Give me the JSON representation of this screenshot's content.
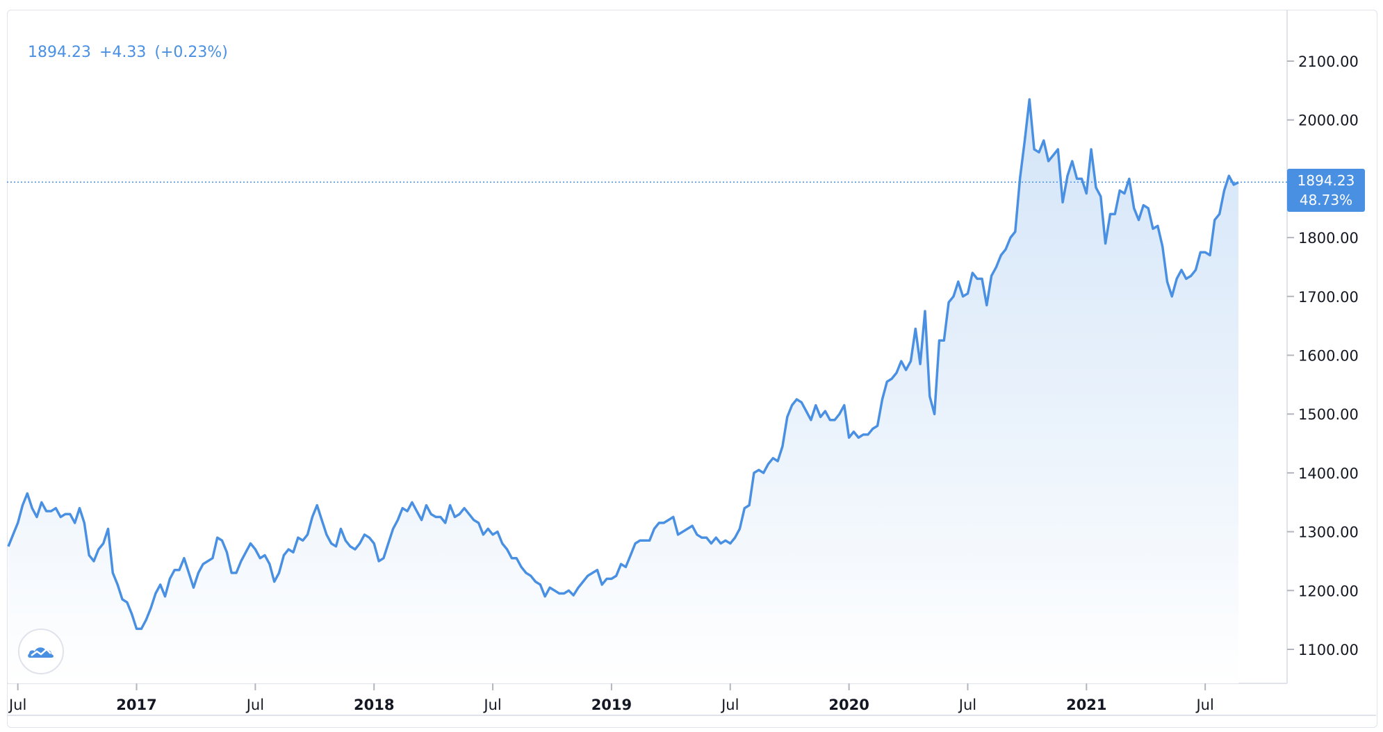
{
  "legend": {
    "last": "1894.23",
    "change": "+4.33",
    "change_pct": "(+0.23%)"
  },
  "price_tag": {
    "price": "1894.23",
    "pct": "48.73%"
  },
  "colors": {
    "line": "#4a90e2",
    "area_top": "#cfe2f7",
    "area_bottom": "#ffffff",
    "grid": "#e0e3eb",
    "text": "#131722"
  },
  "chart_data": {
    "type": "area",
    "y_ticks": [
      "1100.00",
      "1200.00",
      "1300.00",
      "1400.00",
      "1500.00",
      "1600.00",
      "1700.00",
      "1800.00",
      "2000.00",
      "2100.00"
    ],
    "y_tick_values": [
      1100,
      1200,
      1300,
      1400,
      1500,
      1600,
      1700,
      1800,
      2000,
      2100
    ],
    "ylim": [
      1000,
      2160
    ],
    "x_ticks": [
      {
        "label": "Jul",
        "year": false,
        "t": 2016.5
      },
      {
        "label": "2017",
        "year": true,
        "t": 2017.0
      },
      {
        "label": "Jul",
        "year": false,
        "t": 2017.5
      },
      {
        "label": "2018",
        "year": true,
        "t": 2018.0
      },
      {
        "label": "Jul",
        "year": false,
        "t": 2018.5
      },
      {
        "label": "2019",
        "year": true,
        "t": 2019.0
      },
      {
        "label": "Jul",
        "year": false,
        "t": 2019.5
      },
      {
        "label": "2020",
        "year": true,
        "t": 2020.0
      },
      {
        "label": "Jul",
        "year": false,
        "t": 2020.5
      },
      {
        "label": "2021",
        "year": true,
        "t": 2021.0
      },
      {
        "label": "Jul",
        "year": false,
        "t": 2021.5
      }
    ],
    "xlim": [
      2016.46,
      2021.55
    ],
    "last_value": 1894.23,
    "series": [
      {
        "points": [
          [
            2016.46,
            1275
          ],
          [
            2016.48,
            1295
          ],
          [
            2016.5,
            1315
          ],
          [
            2016.52,
            1345
          ],
          [
            2016.54,
            1365
          ],
          [
            2016.56,
            1340
          ],
          [
            2016.58,
            1325
          ],
          [
            2016.6,
            1350
          ],
          [
            2016.62,
            1335
          ],
          [
            2016.64,
            1335
          ],
          [
            2016.66,
            1340
          ],
          [
            2016.68,
            1325
          ],
          [
            2016.7,
            1330
          ],
          [
            2016.72,
            1330
          ],
          [
            2016.74,
            1315
          ],
          [
            2016.76,
            1340
          ],
          [
            2016.78,
            1315
          ],
          [
            2016.8,
            1260
          ],
          [
            2016.82,
            1250
          ],
          [
            2016.84,
            1270
          ],
          [
            2016.86,
            1280
          ],
          [
            2016.88,
            1305
          ],
          [
            2016.9,
            1230
          ],
          [
            2016.92,
            1210
          ],
          [
            2016.94,
            1185
          ],
          [
            2016.96,
            1180
          ],
          [
            2016.98,
            1160
          ],
          [
            2017.0,
            1135
          ],
          [
            2017.02,
            1135
          ],
          [
            2017.04,
            1150
          ],
          [
            2017.06,
            1170
          ],
          [
            2017.08,
            1195
          ],
          [
            2017.1,
            1210
          ],
          [
            2017.12,
            1190
          ],
          [
            2017.14,
            1220
          ],
          [
            2017.16,
            1235
          ],
          [
            2017.18,
            1235
          ],
          [
            2017.2,
            1255
          ],
          [
            2017.22,
            1230
          ],
          [
            2017.24,
            1205
          ],
          [
            2017.26,
            1230
          ],
          [
            2017.28,
            1245
          ],
          [
            2017.3,
            1250
          ],
          [
            2017.32,
            1255
          ],
          [
            2017.34,
            1290
          ],
          [
            2017.36,
            1285
          ],
          [
            2017.38,
            1265
          ],
          [
            2017.4,
            1230
          ],
          [
            2017.42,
            1230
          ],
          [
            2017.44,
            1250
          ],
          [
            2017.46,
            1265
          ],
          [
            2017.48,
            1280
          ],
          [
            2017.5,
            1270
          ],
          [
            2017.52,
            1255
          ],
          [
            2017.54,
            1260
          ],
          [
            2017.56,
            1245
          ],
          [
            2017.58,
            1215
          ],
          [
            2017.6,
            1230
          ],
          [
            2017.62,
            1260
          ],
          [
            2017.64,
            1270
          ],
          [
            2017.66,
            1265
          ],
          [
            2017.68,
            1290
          ],
          [
            2017.7,
            1285
          ],
          [
            2017.72,
            1295
          ],
          [
            2017.74,
            1325
          ],
          [
            2017.76,
            1345
          ],
          [
            2017.78,
            1320
          ],
          [
            2017.8,
            1295
          ],
          [
            2017.82,
            1280
          ],
          [
            2017.84,
            1275
          ],
          [
            2017.86,
            1305
          ],
          [
            2017.88,
            1285
          ],
          [
            2017.9,
            1275
          ],
          [
            2017.92,
            1270
          ],
          [
            2017.94,
            1280
          ],
          [
            2017.96,
            1295
          ],
          [
            2017.98,
            1290
          ],
          [
            2018.0,
            1280
          ],
          [
            2018.02,
            1250
          ],
          [
            2018.04,
            1255
          ],
          [
            2018.06,
            1280
          ],
          [
            2018.08,
            1305
          ],
          [
            2018.1,
            1320
          ],
          [
            2018.12,
            1340
          ],
          [
            2018.14,
            1335
          ],
          [
            2018.16,
            1350
          ],
          [
            2018.18,
            1335
          ],
          [
            2018.2,
            1320
          ],
          [
            2018.22,
            1345
          ],
          [
            2018.24,
            1330
          ],
          [
            2018.26,
            1325
          ],
          [
            2018.28,
            1325
          ],
          [
            2018.3,
            1315
          ],
          [
            2018.32,
            1345
          ],
          [
            2018.34,
            1325
          ],
          [
            2018.36,
            1330
          ],
          [
            2018.38,
            1340
          ],
          [
            2018.4,
            1330
          ],
          [
            2018.42,
            1320
          ],
          [
            2018.44,
            1315
          ],
          [
            2018.46,
            1295
          ],
          [
            2018.48,
            1305
          ],
          [
            2018.5,
            1295
          ],
          [
            2018.52,
            1300
          ],
          [
            2018.54,
            1280
          ],
          [
            2018.56,
            1270
          ],
          [
            2018.58,
            1255
          ],
          [
            2018.6,
            1255
          ],
          [
            2018.62,
            1240
          ],
          [
            2018.64,
            1230
          ],
          [
            2018.66,
            1225
          ],
          [
            2018.68,
            1215
          ],
          [
            2018.7,
            1210
          ],
          [
            2018.72,
            1190
          ],
          [
            2018.74,
            1205
          ],
          [
            2018.76,
            1200
          ],
          [
            2018.78,
            1195
          ],
          [
            2018.8,
            1195
          ],
          [
            2018.82,
            1200
          ],
          [
            2018.84,
            1192
          ],
          [
            2018.86,
            1205
          ],
          [
            2018.88,
            1215
          ],
          [
            2018.9,
            1225
          ],
          [
            2018.92,
            1230
          ],
          [
            2018.94,
            1235
          ],
          [
            2018.96,
            1210
          ],
          [
            2018.98,
            1220
          ],
          [
            2019.0,
            1220
          ],
          [
            2019.02,
            1225
          ],
          [
            2019.04,
            1245
          ],
          [
            2019.06,
            1240
          ],
          [
            2019.08,
            1260
          ],
          [
            2019.1,
            1280
          ],
          [
            2019.12,
            1285
          ],
          [
            2019.14,
            1285
          ],
          [
            2019.16,
            1285
          ],
          [
            2019.18,
            1305
          ],
          [
            2019.2,
            1315
          ],
          [
            2019.22,
            1315
          ],
          [
            2019.24,
            1320
          ],
          [
            2019.26,
            1325
          ],
          [
            2019.28,
            1295
          ],
          [
            2019.3,
            1300
          ],
          [
            2019.32,
            1305
          ],
          [
            2019.34,
            1310
          ],
          [
            2019.36,
            1295
          ],
          [
            2019.38,
            1290
          ],
          [
            2019.4,
            1290
          ],
          [
            2019.42,
            1280
          ],
          [
            2019.44,
            1290
          ],
          [
            2019.46,
            1280
          ],
          [
            2019.48,
            1285
          ],
          [
            2019.5,
            1280
          ],
          [
            2019.52,
            1290
          ],
          [
            2019.54,
            1305
          ],
          [
            2019.56,
            1340
          ],
          [
            2019.58,
            1345
          ],
          [
            2019.6,
            1400
          ],
          [
            2019.62,
            1405
          ],
          [
            2019.64,
            1400
          ],
          [
            2019.66,
            1415
          ],
          [
            2019.68,
            1425
          ],
          [
            2019.7,
            1420
          ],
          [
            2019.72,
            1445
          ],
          [
            2019.74,
            1495
          ],
          [
            2019.76,
            1515
          ],
          [
            2019.78,
            1525
          ],
          [
            2019.8,
            1520
          ],
          [
            2019.82,
            1505
          ],
          [
            2019.84,
            1490
          ],
          [
            2019.86,
            1515
          ],
          [
            2019.88,
            1495
          ],
          [
            2019.9,
            1505
          ],
          [
            2019.92,
            1490
          ],
          [
            2019.94,
            1490
          ],
          [
            2019.96,
            1500
          ],
          [
            2019.98,
            1515
          ],
          [
            2020.0,
            1460
          ],
          [
            2020.02,
            1470
          ],
          [
            2020.04,
            1460
          ],
          [
            2020.06,
            1465
          ],
          [
            2020.08,
            1465
          ],
          [
            2020.1,
            1475
          ],
          [
            2020.12,
            1480
          ],
          [
            2020.14,
            1525
          ],
          [
            2020.16,
            1555
          ],
          [
            2020.18,
            1560
          ],
          [
            2020.2,
            1570
          ],
          [
            2020.22,
            1590
          ],
          [
            2020.24,
            1575
          ],
          [
            2020.26,
            1590
          ],
          [
            2020.28,
            1645
          ],
          [
            2020.3,
            1585
          ],
          [
            2020.32,
            1675
          ],
          [
            2020.34,
            1530
          ],
          [
            2020.36,
            1500
          ],
          [
            2020.38,
            1625
          ],
          [
            2020.4,
            1625
          ],
          [
            2020.42,
            1690
          ],
          [
            2020.44,
            1700
          ],
          [
            2020.46,
            1725
          ],
          [
            2020.48,
            1700
          ],
          [
            2020.5,
            1705
          ],
          [
            2020.52,
            1740
          ],
          [
            2020.54,
            1730
          ],
          [
            2020.56,
            1730
          ],
          [
            2020.58,
            1685
          ],
          [
            2020.6,
            1735
          ],
          [
            2020.62,
            1750
          ],
          [
            2020.64,
            1770
          ],
          [
            2020.66,
            1780
          ],
          [
            2020.68,
            1800
          ],
          [
            2020.7,
            1810
          ],
          [
            2020.72,
            1900
          ],
          [
            2020.74,
            1965
          ],
          [
            2020.76,
            2035
          ],
          [
            2020.78,
            1950
          ],
          [
            2020.8,
            1945
          ],
          [
            2020.82,
            1965
          ],
          [
            2020.84,
            1930
          ],
          [
            2020.86,
            1940
          ],
          [
            2020.88,
            1950
          ],
          [
            2020.9,
            1860
          ],
          [
            2020.92,
            1905
          ],
          [
            2020.94,
            1930
          ],
          [
            2020.96,
            1900
          ],
          [
            2020.98,
            1900
          ],
          [
            2021.0,
            1875
          ],
          [
            2021.02,
            1950
          ],
          [
            2021.04,
            1885
          ],
          [
            2021.06,
            1870
          ],
          [
            2021.08,
            1790
          ],
          [
            2021.1,
            1840
          ],
          [
            2021.12,
            1840
          ],
          [
            2021.14,
            1880
          ],
          [
            2021.16,
            1875
          ],
          [
            2021.18,
            1900
          ],
          [
            2021.2,
            1850
          ],
          [
            2021.22,
            1830
          ],
          [
            2021.24,
            1855
          ],
          [
            2021.26,
            1850
          ],
          [
            2021.28,
            1815
          ],
          [
            2021.3,
            1820
          ],
          [
            2021.32,
            1785
          ],
          [
            2021.34,
            1725
          ],
          [
            2021.36,
            1700
          ],
          [
            2021.38,
            1730
          ],
          [
            2021.4,
            1745
          ],
          [
            2021.42,
            1730
          ],
          [
            2021.44,
            1735
          ],
          [
            2021.46,
            1745
          ],
          [
            2021.48,
            1775
          ],
          [
            2021.5,
            1775
          ],
          [
            2021.52,
            1770
          ],
          [
            2021.54,
            1830
          ],
          [
            2021.56,
            1840
          ],
          [
            2021.58,
            1880
          ],
          [
            2021.6,
            1905
          ],
          [
            2021.62,
            1890
          ],
          [
            2021.64,
            1894
          ]
        ]
      }
    ]
  }
}
